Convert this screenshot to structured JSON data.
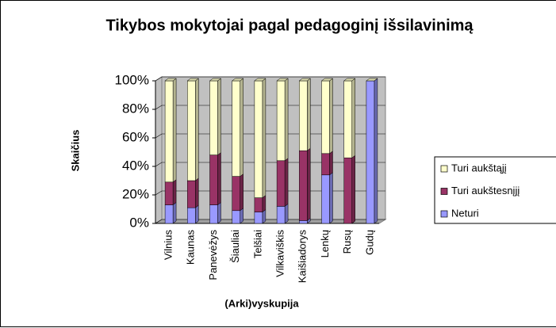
{
  "chart_data": {
    "type": "bar",
    "stacked": true,
    "title": "Tikybos mokytojai pagal pedagoginį išsilavinimą",
    "x_label": "(Arki)vyskupija",
    "y_label": "Skaičius",
    "categories": [
      "Vilnius",
      "Kaunas",
      "Panevėžys",
      "Šiauliai",
      "Telšiai",
      "Vilkaviškis",
      "Kaišiadorys",
      "Lenkų",
      "Rusų",
      "Gudų"
    ],
    "series": [
      {
        "name": "Neturi",
        "color": "#9999ff",
        "values": [
          13,
          11,
          13,
          9,
          8,
          12,
          2,
          34,
          0,
          100
        ]
      },
      {
        "name": "Turi aukštesnįjį",
        "color": "#993366",
        "values": [
          16,
          19,
          35,
          24,
          10,
          32,
          49,
          15,
          46,
          0
        ]
      },
      {
        "name": "Turi aukštąjį",
        "color": "#ffffcc",
        "values": [
          71,
          70,
          52,
          67,
          82,
          56,
          49,
          51,
          54,
          0
        ]
      }
    ],
    "ylim": [
      0,
      100
    ],
    "yticks": [
      {
        "value": 0,
        "label": "0%"
      },
      {
        "value": 20,
        "label": "20%"
      },
      {
        "value": 40,
        "label": "40%"
      },
      {
        "value": 60,
        "label": "60%"
      },
      {
        "value": 80,
        "label": "80%"
      },
      {
        "value": 100,
        "label": "100%"
      }
    ],
    "grid": true,
    "legend": "right"
  }
}
